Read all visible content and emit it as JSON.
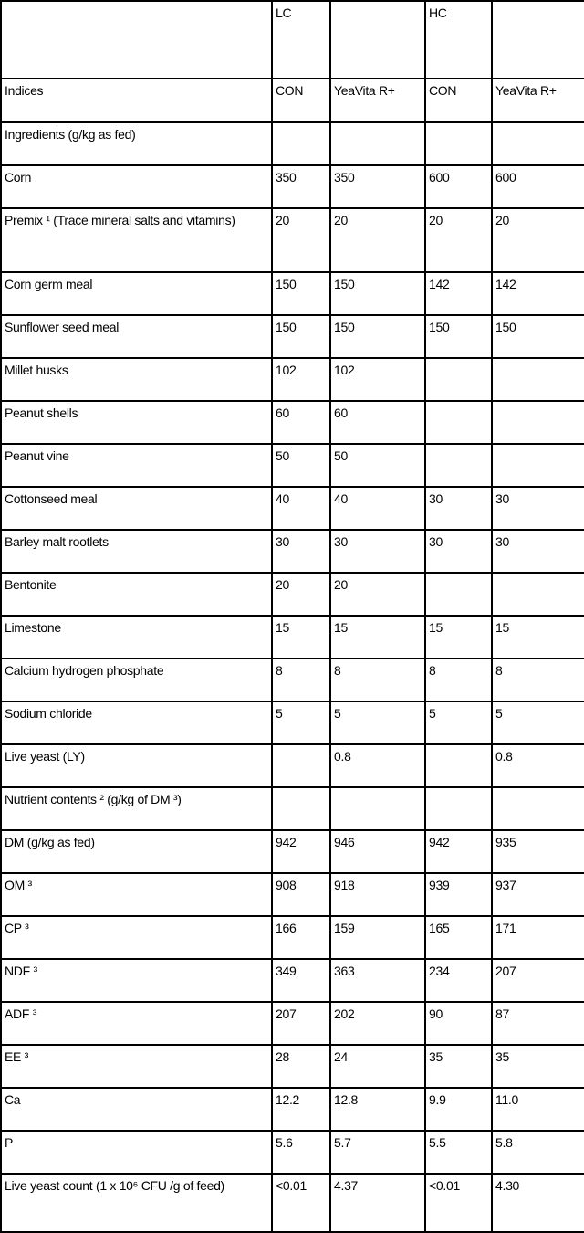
{
  "header": {
    "groups": [
      "",
      "LC",
      "",
      "HC",
      ""
    ],
    "columns": [
      "Indices",
      "CON",
      "YeaVita R+",
      "CON",
      "YeaVita R+"
    ]
  },
  "rows": [
    {
      "label": "Ingredients (g/kg as fed)",
      "values": [
        "",
        "",
        "",
        ""
      ]
    },
    {
      "label": "Corn",
      "values": [
        "350",
        "350",
        "600",
        "600"
      ]
    },
    {
      "label": "Premix ¹ (Trace mineral salts and vitamins)",
      "values": [
        "20",
        "20",
        "20",
        "20"
      ]
    },
    {
      "label": "Corn germ meal",
      "values": [
        "150",
        "150",
        "142",
        "142"
      ]
    },
    {
      "label": "Sunflower seed meal",
      "values": [
        "150",
        "150",
        "150",
        "150"
      ]
    },
    {
      "label": "Millet husks",
      "values": [
        "102",
        "102",
        "",
        ""
      ]
    },
    {
      "label": "Peanut shells",
      "values": [
        "60",
        "60",
        "",
        ""
      ]
    },
    {
      "label": "Peanut vine",
      "values": [
        "50",
        "50",
        "",
        ""
      ]
    },
    {
      "label": "Cottonseed meal",
      "values": [
        "40",
        "40",
        "30",
        "30"
      ]
    },
    {
      "label": "Barley malt rootlets",
      "values": [
        "30",
        "30",
        "30",
        "30"
      ]
    },
    {
      "label": "Bentonite",
      "values": [
        "20",
        "20",
        "",
        ""
      ]
    },
    {
      "label": "Limestone",
      "values": [
        "15",
        "15",
        "15",
        "15"
      ]
    },
    {
      "label": "Calcium hydrogen phosphate",
      "values": [
        "8",
        "8",
        "8",
        "8"
      ]
    },
    {
      "label": "Sodium chloride",
      "values": [
        "5",
        "5",
        "5",
        "5"
      ]
    },
    {
      "label": "Live yeast (LY)",
      "values": [
        "",
        "0.8",
        "",
        "0.8"
      ]
    },
    {
      "label": "Nutrient contents ² (g/kg of DM ³)",
      "values": [
        "",
        "",
        "",
        ""
      ]
    },
    {
      "label": "DM (g/kg as fed)",
      "values": [
        "942",
        "946",
        "942",
        "935"
      ]
    },
    {
      "label": "OM ³",
      "values": [
        "908",
        "918",
        "939",
        "937"
      ]
    },
    {
      "label": "CP ³",
      "values": [
        "166",
        "159",
        "165",
        "171"
      ]
    },
    {
      "label": "NDF ³",
      "values": [
        "349",
        "363",
        "234",
        "207"
      ]
    },
    {
      "label": "ADF ³",
      "values": [
        "207",
        "202",
        "90",
        "87"
      ]
    },
    {
      "label": "EE ³",
      "values": [
        "28",
        "24",
        "35",
        "35"
      ]
    },
    {
      "label": "Ca",
      "values": [
        "12.2",
        "12.8",
        "9.9",
        "11.0"
      ]
    },
    {
      "label": "P",
      "values": [
        "5.6",
        "5.7",
        "5.5",
        "5.8"
      ]
    },
    {
      "label": "Live yeast count (1 x 10⁶ CFU /g of feed)",
      "values": [
        "<0.01",
        "4.37",
        "<0.01",
        "4.30"
      ]
    }
  ]
}
